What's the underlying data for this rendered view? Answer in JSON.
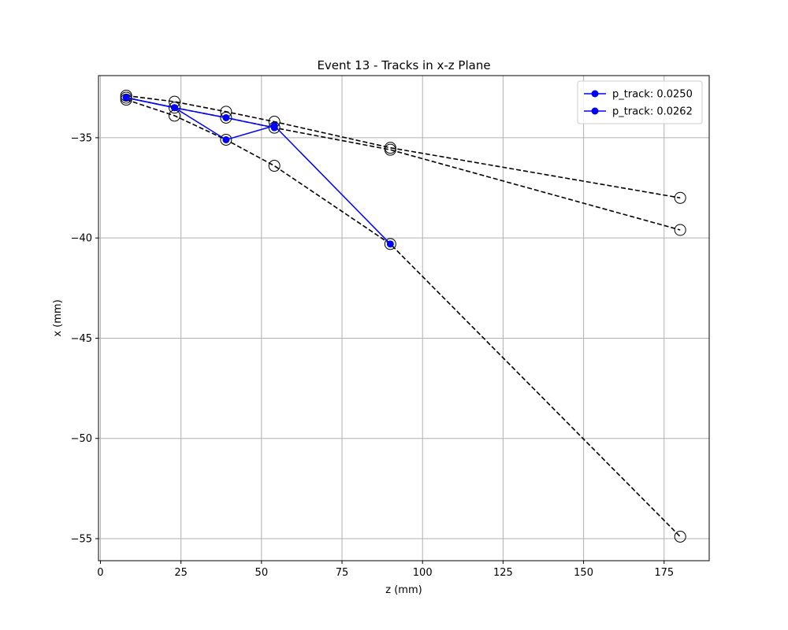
{
  "chart_data": {
    "type": "line",
    "title": "Event 13 - Tracks in x-z Plane",
    "xlabel": "z (mm)",
    "ylabel": "x (mm)",
    "xlim": [
      -0.6,
      189
    ],
    "ylim": [
      -56.1,
      -31.9
    ],
    "xticks": [
      0,
      25,
      50,
      75,
      100,
      125,
      150,
      175
    ],
    "yticks": [
      -35,
      -40,
      -45,
      -50,
      -55
    ],
    "grid": true,
    "legend_position": "top-right",
    "colors": {
      "track": "#0000ff",
      "reference": "#000000",
      "grid": "#b0b0b0"
    },
    "reference_tracks": [
      {
        "z": [
          8,
          23,
          39,
          54,
          90,
          180
        ],
        "x": [
          -32.9,
          -33.2,
          -33.7,
          -34.2,
          -35.5,
          -38.0
        ]
      },
      {
        "z": [
          8,
          23,
          39,
          54,
          90,
          180
        ],
        "x": [
          -33.0,
          -33.5,
          -34.0,
          -34.5,
          -35.6,
          -39.6
        ]
      },
      {
        "z": [
          8,
          23,
          39,
          54,
          90,
          180
        ],
        "x": [
          -33.1,
          -33.9,
          -35.1,
          -36.4,
          -40.3,
          -54.9
        ]
      }
    ],
    "series": [
      {
        "name": "p_track: 0.0250",
        "z": [
          8,
          23,
          39,
          54
        ],
        "x": [
          -33.0,
          -33.5,
          -34.0,
          -34.5
        ]
      },
      {
        "name": "p_track: 0.0262",
        "z": [
          8,
          23,
          39,
          54,
          90
        ],
        "x": [
          -33.0,
          -33.5,
          -35.1,
          -34.4,
          -40.3
        ]
      }
    ]
  }
}
